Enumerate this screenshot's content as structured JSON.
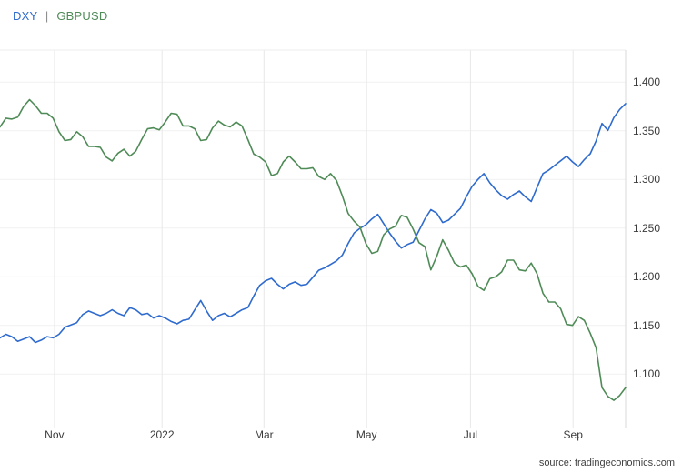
{
  "legend": {
    "items": [
      {
        "label": "DXY",
        "color": "#2f6bce"
      },
      {
        "label": "GBPUSD",
        "color": "#4f8b57"
      }
    ],
    "separator": "|"
  },
  "source": {
    "label": "source: tradingeconomics.com"
  },
  "chart_data": {
    "type": "line",
    "title": "",
    "x_range_note": "Oct 2021 - Sep 2022, daily values",
    "grid": {
      "vertical": true,
      "horizontal": true
    },
    "x_ticks": [
      {
        "label": "Nov",
        "pos": 0.087
      },
      {
        "label": "2022",
        "pos": 0.259
      },
      {
        "label": "Mar",
        "pos": 0.422
      },
      {
        "label": "May",
        "pos": 0.586
      },
      {
        "label": "Jul",
        "pos": 0.752
      },
      {
        "label": "Sep",
        "pos": 0.916
      }
    ],
    "y_axis": {
      "side": "right",
      "ticks": [
        "1.400",
        "1.350",
        "1.300",
        "1.250",
        "1.200",
        "1.150",
        "1.100"
      ],
      "tick_values": [
        1.4,
        1.35,
        1.3,
        1.25,
        1.2,
        1.15,
        1.1
      ],
      "range": [
        1.045,
        1.433
      ]
    },
    "series": [
      {
        "name": "DXY",
        "color": "#2f6bce",
        "axis": "hidden-left",
        "range": [
          86.3,
          118.7
        ],
        "values": [
          94.0,
          94.3,
          94.1,
          93.7,
          93.9,
          94.1,
          93.6,
          93.8,
          94.1,
          94.0,
          94.3,
          94.9,
          95.1,
          95.3,
          96.0,
          96.3,
          96.1,
          95.9,
          96.1,
          96.4,
          96.1,
          95.9,
          96.6,
          96.4,
          96.0,
          96.1,
          95.7,
          95.9,
          95.7,
          95.4,
          95.2,
          95.5,
          95.6,
          96.4,
          97.2,
          96.3,
          95.5,
          95.9,
          96.1,
          95.8,
          96.1,
          96.4,
          96.6,
          97.6,
          98.5,
          98.9,
          99.1,
          98.6,
          98.2,
          98.6,
          98.8,
          98.5,
          98.6,
          99.2,
          99.8,
          100.0,
          100.3,
          100.6,
          101.1,
          102.1,
          103.0,
          103.4,
          103.7,
          104.2,
          104.6,
          103.8,
          103.0,
          102.3,
          101.7,
          102.0,
          102.2,
          103.2,
          104.2,
          105.0,
          104.7,
          103.9,
          104.1,
          104.6,
          105.1,
          106.1,
          107.0,
          107.6,
          108.1,
          107.3,
          106.7,
          106.2,
          105.9,
          106.3,
          106.6,
          106.1,
          105.7,
          106.9,
          108.1,
          108.4,
          108.8,
          109.2,
          109.6,
          109.1,
          108.7,
          109.3,
          109.8,
          110.9,
          112.4,
          111.8,
          112.9,
          113.6,
          114.1
        ]
      },
      {
        "name": "GBPUSD",
        "color": "#4f8b57",
        "axis": "right",
        "range": [
          1.045,
          1.433
        ],
        "values": [
          1.354,
          1.363,
          1.362,
          1.364,
          1.375,
          1.382,
          1.376,
          1.368,
          1.368,
          1.363,
          1.349,
          1.34,
          1.341,
          1.349,
          1.344,
          1.334,
          1.334,
          1.333,
          1.323,
          1.319,
          1.327,
          1.331,
          1.324,
          1.329,
          1.341,
          1.352,
          1.353,
          1.351,
          1.359,
          1.368,
          1.367,
          1.355,
          1.355,
          1.352,
          1.34,
          1.341,
          1.353,
          1.36,
          1.356,
          1.354,
          1.359,
          1.355,
          1.341,
          1.326,
          1.323,
          1.318,
          1.304,
          1.306,
          1.318,
          1.324,
          1.318,
          1.311,
          1.311,
          1.312,
          1.303,
          1.3,
          1.306,
          1.299,
          1.283,
          1.265,
          1.257,
          1.251,
          1.234,
          1.224,
          1.226,
          1.243,
          1.249,
          1.252,
          1.263,
          1.261,
          1.249,
          1.235,
          1.231,
          1.207,
          1.221,
          1.238,
          1.227,
          1.214,
          1.21,
          1.212,
          1.203,
          1.19,
          1.186,
          1.198,
          1.2,
          1.205,
          1.217,
          1.217,
          1.207,
          1.206,
          1.214,
          1.203,
          1.183,
          1.174,
          1.174,
          1.167,
          1.151,
          1.15,
          1.159,
          1.155,
          1.142,
          1.127,
          1.086,
          1.077,
          1.073,
          1.078,
          1.086
        ]
      }
    ]
  }
}
